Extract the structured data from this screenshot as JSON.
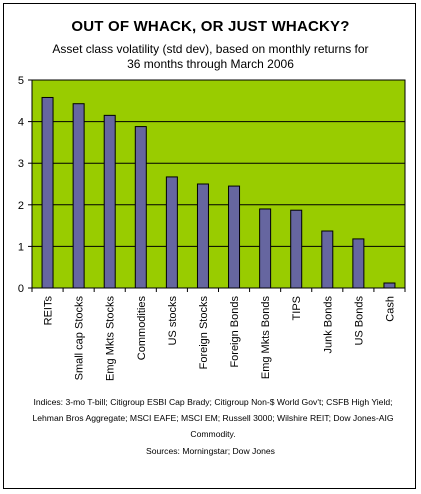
{
  "chart_data": {
    "type": "bar",
    "title": "OUT OF WHACK, OR JUST WHACKY?",
    "subtitle_lines": [
      "Asset class volatility (std dev), based on monthly returns for",
      "36 months through March 2006"
    ],
    "categories": [
      "REITs",
      "Small cap Stocks",
      "Emg Mkts Stocks",
      "Commodities",
      "US stocks",
      "Foreign Stocks",
      "Foreign Bonds",
      "Emg Mkts Bonds",
      "TIPS",
      "Junk Bonds",
      "US Bonds",
      "Cash"
    ],
    "values": [
      4.58,
      4.43,
      4.15,
      3.88,
      2.67,
      2.5,
      2.45,
      1.9,
      1.87,
      1.37,
      1.18,
      0.12
    ],
    "ylim": [
      0,
      5
    ],
    "yticks": [
      0,
      1,
      2,
      3,
      4,
      5
    ],
    "xlabel": "",
    "ylabel": "",
    "grid": true,
    "colors": {
      "plot_background": "#99CC00",
      "bar_fill": "#6666A0",
      "gridline": "#000000"
    },
    "footnote": "Indices: 3-mo T-bill; Citigroup ESBI Cap Brady; Citigroup Non-$ World Gov't; CSFB High Yield; Lehman Bros Aggregate; MSCI EAFE; MSCI EM; Russell 3000; Wilshire REIT; Dow Jones-AIG Commodity.",
    "sources": "Sources: Morningstar; Dow Jones"
  }
}
